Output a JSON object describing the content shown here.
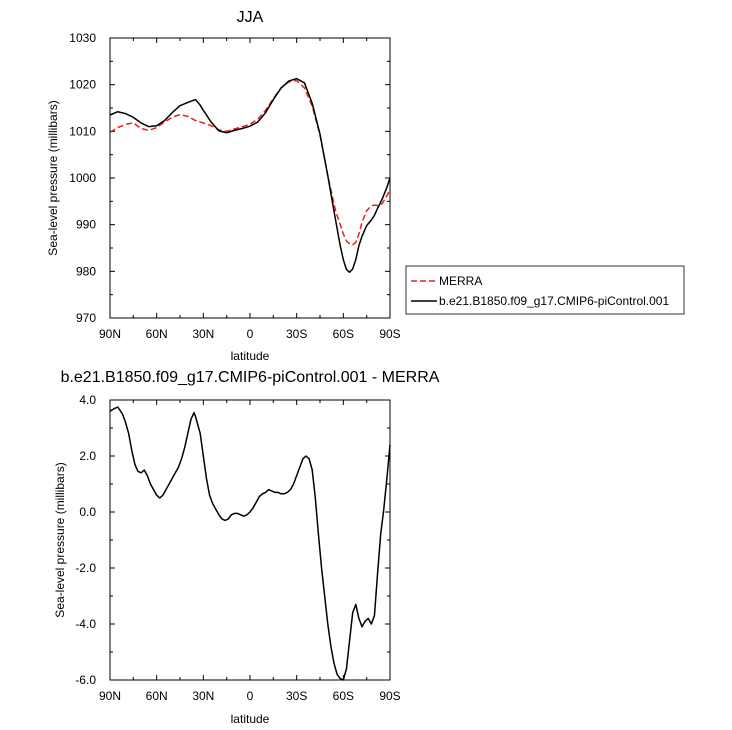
{
  "chart_data": [
    {
      "type": "line",
      "title": "JJA",
      "xlabel": "latitude",
      "ylabel": "Sea-level pressure (millibars)",
      "xlim": [
        -90,
        90
      ],
      "ylim": [
        970,
        1030
      ],
      "xticks": [
        -90,
        -60,
        -30,
        0,
        30,
        60,
        90
      ],
      "xtick_labels": [
        "90N",
        "60N",
        "30N",
        "0",
        "30S",
        "60S",
        "90S"
      ],
      "yticks": [
        970,
        980,
        990,
        1000,
        1010,
        1020,
        1030
      ],
      "ytick_labels": [
        "970",
        "980",
        "990",
        "1000",
        "1010",
        "1020",
        "1030"
      ],
      "legend_position": "right",
      "series": [
        {
          "name": "MERRA",
          "color": "#e8201e",
          "dash": true,
          "x": [
            -90,
            -85,
            -80,
            -75,
            -70,
            -65,
            -60,
            -55,
            -50,
            -45,
            -40,
            -35,
            -30,
            -25,
            -20,
            -15,
            -10,
            -5,
            0,
            5,
            10,
            15,
            20,
            25,
            30,
            35,
            40,
            45,
            50,
            55,
            60,
            62,
            64,
            66,
            68,
            70,
            72,
            75,
            78,
            80,
            82,
            85,
            88,
            90
          ],
          "y": [
            1009.8,
            1010.8,
            1011.5,
            1011.8,
            1010.6,
            1010.2,
            1010.8,
            1012.0,
            1013.0,
            1013.6,
            1013.2,
            1012.3,
            1011.8,
            1011.2,
            1010.3,
            1010.0,
            1010.5,
            1011.0,
            1011.5,
            1012.6,
            1014.5,
            1017.0,
            1019.3,
            1020.6,
            1020.9,
            1019.3,
            1015.4,
            1009.2,
            1000.5,
            993.0,
            988.0,
            986.5,
            985.9,
            985.7,
            986.2,
            988.0,
            990.5,
            993.0,
            994.0,
            994.2,
            994.1,
            994.5,
            996.2,
            997.5
          ]
        },
        {
          "name": "b.e21.B1850.f09_g17.CMIP6-piControl.001",
          "color": "#000000",
          "dash": false,
          "x": [
            -90,
            -85,
            -80,
            -75,
            -70,
            -65,
            -60,
            -55,
            -50,
            -45,
            -40,
            -35,
            -32,
            -30,
            -25,
            -20,
            -15,
            -10,
            -5,
            0,
            5,
            10,
            15,
            20,
            25,
            30,
            35,
            40,
            45,
            50,
            55,
            58,
            60,
            62,
            64,
            66,
            68,
            70,
            72,
            75,
            78,
            80,
            82,
            85,
            88,
            90
          ],
          "y": [
            1013.5,
            1014.2,
            1013.8,
            1013.0,
            1011.8,
            1011.0,
            1011.2,
            1012.3,
            1014.0,
            1015.5,
            1016.2,
            1016.8,
            1015.6,
            1014.5,
            1012.0,
            1010.1,
            1009.7,
            1010.2,
            1010.6,
            1011.1,
            1012.0,
            1014.0,
            1016.8,
            1019.3,
            1020.8,
            1021.3,
            1020.4,
            1016.0,
            1009.4,
            1000.5,
            991.0,
            985.5,
            982.5,
            980.4,
            979.8,
            980.5,
            982.5,
            985.5,
            987.5,
            989.8,
            991.0,
            992.0,
            993.5,
            995.5,
            998.0,
            1000.0
          ]
        }
      ]
    },
    {
      "type": "line",
      "title": "b.e21.B1850.f09_g17.CMIP6-piControl.001 - MERRA",
      "xlabel": "latitude",
      "ylabel": "Sea-level pressure (millibars)",
      "xlim": [
        -90,
        90
      ],
      "ylim": [
        -6,
        4
      ],
      "xticks": [
        -90,
        -60,
        -30,
        0,
        30,
        60,
        90
      ],
      "xtick_labels": [
        "90N",
        "60N",
        "30N",
        "0",
        "30S",
        "60S",
        "90S"
      ],
      "yticks": [
        -6,
        -4,
        -2,
        0,
        2,
        4
      ],
      "ytick_labels": [
        "-6.0",
        "-4.0",
        "-2.0",
        "0.0",
        "2.0",
        "4.0"
      ],
      "series": [
        {
          "color": "#000000",
          "dash": false,
          "x": [
            -90,
            -87,
            -85,
            -82,
            -80,
            -78,
            -76,
            -74,
            -72,
            -70,
            -68,
            -66,
            -64,
            -62,
            -60,
            -58,
            -56,
            -54,
            -52,
            -50,
            -48,
            -46,
            -44,
            -42,
            -40,
            -38,
            -36,
            -35,
            -34,
            -33,
            -32,
            -30,
            -28,
            -26,
            -24,
            -22,
            -20,
            -18,
            -16,
            -14,
            -12,
            -10,
            -8,
            -6,
            -4,
            -2,
            0,
            2,
            4,
            6,
            8,
            10,
            12,
            14,
            16,
            18,
            20,
            22,
            24,
            26,
            28,
            30,
            32,
            34,
            36,
            38,
            40,
            42,
            44,
            46,
            48,
            50,
            52,
            54,
            56,
            58,
            60,
            62,
            64,
            66,
            68,
            70,
            72,
            74,
            76,
            78,
            80,
            82,
            84,
            86,
            88,
            90
          ],
          "y": [
            3.6,
            3.7,
            3.75,
            3.5,
            3.2,
            2.8,
            2.2,
            1.7,
            1.45,
            1.4,
            1.5,
            1.3,
            1.0,
            0.8,
            0.6,
            0.5,
            0.6,
            0.8,
            1.0,
            1.2,
            1.4,
            1.6,
            1.9,
            2.3,
            2.8,
            3.3,
            3.55,
            3.4,
            3.2,
            3.0,
            2.8,
            2.0,
            1.2,
            0.6,
            0.3,
            0.1,
            -0.1,
            -0.25,
            -0.3,
            -0.25,
            -0.1,
            -0.05,
            -0.05,
            -0.1,
            -0.15,
            -0.1,
            0.0,
            0.15,
            0.35,
            0.55,
            0.65,
            0.7,
            0.8,
            0.75,
            0.7,
            0.7,
            0.65,
            0.65,
            0.7,
            0.8,
            1.0,
            1.3,
            1.6,
            1.9,
            2.0,
            1.9,
            1.5,
            0.5,
            -0.8,
            -2.0,
            -3.0,
            -4.0,
            -4.8,
            -5.4,
            -5.8,
            -5.95,
            -6.0,
            -5.6,
            -4.6,
            -3.6,
            -3.3,
            -3.8,
            -4.1,
            -3.9,
            -3.8,
            -4.0,
            -3.7,
            -2.2,
            -0.8,
            0.1,
            1.2,
            2.4
          ]
        }
      ]
    },
    {
      "legend_entries": [
        "MERRA",
        "b.e21.B1850.f09_g17.CMIP6-piControl.001"
      ]
    }
  ]
}
